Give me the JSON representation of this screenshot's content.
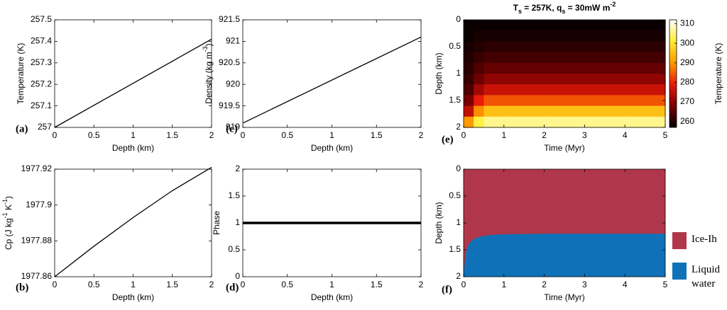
{
  "chart_data": [
    {
      "type": "line",
      "panel_label": "(a)",
      "xlabel": "Depth (km)",
      "ylabel": "Temperature (K)",
      "x": [
        0,
        2
      ],
      "y": [
        257,
        257.41
      ],
      "color": "#000000",
      "linewidth": 1.3,
      "xlim": [
        0,
        2
      ],
      "xticks": [
        0,
        0.5,
        1,
        1.5,
        2
      ],
      "ylim": [
        257,
        257.5
      ],
      "yticks": [
        257,
        257.1,
        257.2,
        257.3,
        257.4,
        257.5
      ]
    },
    {
      "type": "line",
      "panel_label": "(b)",
      "xlabel": "Depth (km)",
      "ylabel": [
        {
          "text": "Cp (J kg"
        },
        {
          "text": "-1",
          "script": "sup"
        },
        {
          "text": " K"
        },
        {
          "text": "-1",
          "script": "sup"
        },
        {
          "text": ")"
        }
      ],
      "x": [
        0,
        0.5,
        1,
        1.5,
        2
      ],
      "y": [
        1977.86,
        1977.877,
        1977.893,
        1977.908,
        1977.921
      ],
      "color": "#000000",
      "linewidth": 1.3,
      "xlim": [
        0,
        2
      ],
      "xticks": [
        0,
        0.5,
        1,
        1.5,
        2
      ],
      "ylim": [
        1977.86,
        1977.92
      ],
      "yticks": [
        1977.86,
        1977.88,
        1977.9,
        1977.92
      ]
    },
    {
      "type": "line",
      "panel_label": "(c)",
      "xlabel": "Depth (km)",
      "ylabel": [
        {
          "text": "Density (kg m"
        },
        {
          "text": "-3",
          "script": "sup"
        },
        {
          "text": ")"
        }
      ],
      "x": [
        0,
        2
      ],
      "y": [
        919.1,
        921.1
      ],
      "color": "#000000",
      "linewidth": 1.3,
      "xlim": [
        0,
        2
      ],
      "xticks": [
        0,
        0.5,
        1,
        1.5,
        2
      ],
      "ylim": [
        919,
        921.5
      ],
      "yticks": [
        919,
        919.5,
        920,
        920.5,
        921,
        921.5
      ]
    },
    {
      "type": "line",
      "panel_label": "(d)",
      "xlabel": "Depth (km)",
      "ylabel": "Phase",
      "x": [
        0,
        2
      ],
      "y": [
        1,
        1
      ],
      "color": "#000000",
      "linewidth": 3.5,
      "xlim": [
        0,
        2
      ],
      "xticks": [
        0,
        0.5,
        1,
        1.5,
        2
      ],
      "ylim": [
        0,
        2
      ],
      "yticks": [
        0,
        0.5,
        1,
        1.5,
        2
      ]
    },
    {
      "type": "heatmap",
      "panel_label": "(e)",
      "title": [
        {
          "text": "T"
        },
        {
          "text": "s",
          "script": "sub"
        },
        {
          "text": " = 257K, q"
        },
        {
          "text": "s",
          "script": "sub"
        },
        {
          "text": " = 30mW m"
        },
        {
          "text": "-2",
          "script": "sup"
        }
      ],
      "xlabel": "Time (Myr)",
      "ylabel": "Depth (km)",
      "colorbar_label": "Temperature (K)",
      "xbins": [
        0,
        0.25,
        0.5,
        1,
        2,
        3,
        4,
        5
      ],
      "ybins": [
        0,
        0.2,
        0.4,
        0.6,
        0.8,
        1,
        1.2,
        1.4,
        1.6,
        1.8,
        2
      ],
      "z": [
        [
          258,
          258,
          258,
          258,
          258,
          258,
          258
        ],
        [
          258,
          259,
          259,
          259,
          259,
          259,
          259
        ],
        [
          259,
          260,
          261,
          261,
          261,
          261,
          261
        ],
        [
          260,
          262,
          263,
          263,
          263,
          263,
          263
        ],
        [
          261,
          264,
          266,
          266,
          266,
          266,
          266
        ],
        [
          262,
          267,
          270,
          270,
          270,
          270,
          270
        ],
        [
          264,
          272,
          276,
          276,
          276,
          276,
          276
        ],
        [
          268,
          279,
          284,
          284,
          284,
          284,
          284
        ],
        [
          275,
          289,
          295,
          295,
          295,
          295,
          295
        ],
        [
          290,
          302,
          306,
          306,
          306,
          306,
          306
        ]
      ],
      "colormap": [
        "#000000",
        "#7a0000",
        "#e81a0a",
        "#ff9a00",
        "#ffee30",
        "#ffffff"
      ],
      "zlim": [
        257,
        312
      ],
      "cticks": [
        260,
        270,
        280,
        290,
        300,
        310
      ],
      "xlim": [
        0,
        5
      ],
      "xticks": [
        0,
        1,
        2,
        3,
        4,
        5
      ],
      "ylim": [
        2,
        0
      ],
      "yticks": [
        0,
        0.5,
        1,
        1.5,
        2
      ]
    },
    {
      "type": "phase_map",
      "panel_label": "(f)",
      "xlabel": "Time (Myr)",
      "ylabel": "Depth (km)",
      "series": [
        {
          "name": "Ice-Ih",
          "color": "#b0374b"
        },
        {
          "name": "Liquid water",
          "color": "#0f72b8"
        }
      ],
      "x": [
        0,
        0.03,
        0.07,
        0.12,
        0.2,
        0.3,
        0.5,
        0.75,
        1,
        2,
        3,
        4,
        5
      ],
      "boundary": [
        2,
        1.7,
        1.5,
        1.4,
        1.33,
        1.28,
        1.24,
        1.22,
        1.21,
        1.2,
        1.2,
        1.2,
        1.2
      ],
      "xlim": [
        0,
        5
      ],
      "xticks": [
        0,
        1,
        2,
        3,
        4,
        5
      ],
      "ylim": [
        2,
        0
      ],
      "yticks": [
        0,
        0.5,
        1,
        1.5,
        2
      ]
    }
  ]
}
